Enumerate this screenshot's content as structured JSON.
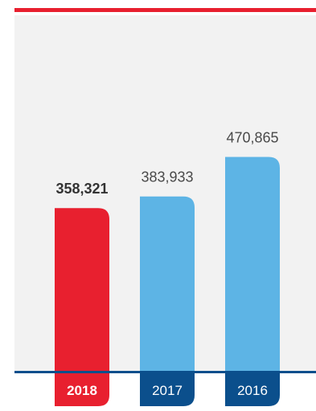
{
  "chart_data": {
    "type": "bar",
    "categories": [
      "2018",
      "2017",
      "2016"
    ],
    "values": [
      358321,
      383933,
      470865
    ],
    "value_labels": [
      "358,321",
      "383,933",
      "470,865"
    ],
    "ylim": [
      0,
      500000
    ],
    "grid": false,
    "legend": "none",
    "highlight_index": 0
  },
  "colors": {
    "highlight_bar": "#e8202f",
    "bar": "#5db4e5",
    "year_tab": "#0b4f8c",
    "panel": "#f2f2f2"
  }
}
